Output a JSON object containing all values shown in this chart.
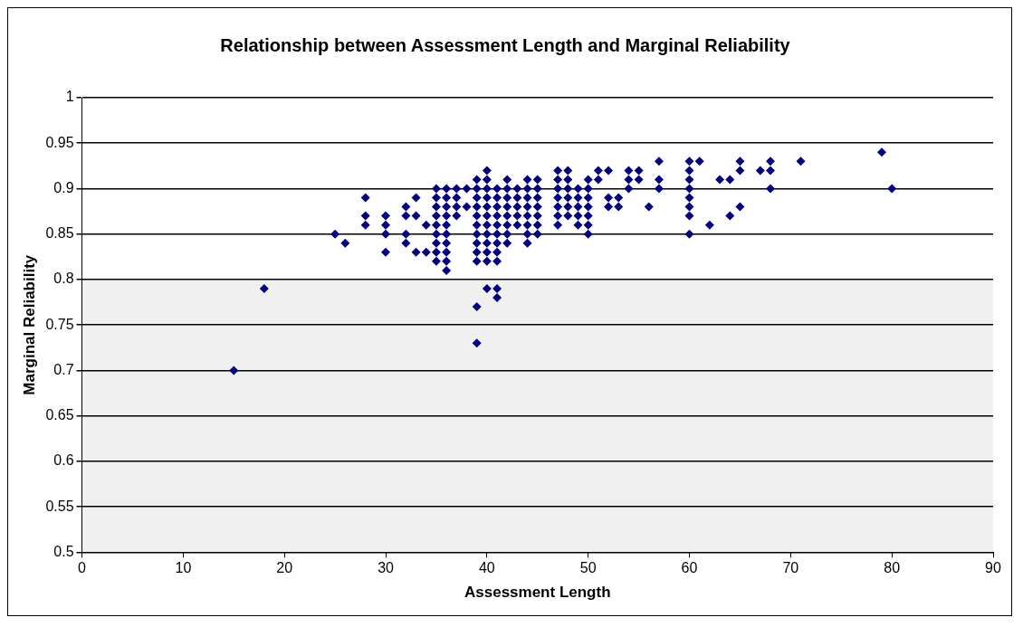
{
  "chart_data": {
    "type": "scatter",
    "title": "Relationship between Assessment Length and Marginal Reliability",
    "xlabel": "Assessment Length",
    "ylabel": "Marginal Reliability",
    "xlim": [
      0,
      90
    ],
    "xticks": [
      0,
      10,
      20,
      30,
      40,
      50,
      60,
      70,
      80,
      90
    ],
    "ylim": [
      0.5,
      1
    ],
    "yticks": [
      0.5,
      0.55,
      0.6,
      0.65,
      0.7,
      0.75,
      0.8,
      0.85,
      0.9,
      0.95,
      1
    ],
    "grid": "y",
    "legend": false,
    "marker": "diamond",
    "bands": [
      {
        "axis": "y",
        "from": 0.5,
        "to": 0.8,
        "color": "#f0f0f0"
      }
    ],
    "series": [
      {
        "color": "#000080",
        "x": [
          15,
          18,
          25,
          26,
          28,
          28,
          28,
          30,
          30,
          30,
          30,
          32,
          32,
          32,
          32,
          33,
          33,
          33,
          34,
          34,
          35,
          35,
          35,
          35,
          35,
          35,
          35,
          35,
          35,
          36,
          36,
          36,
          36,
          36,
          36,
          36,
          36,
          36,
          36,
          37,
          37,
          37,
          37,
          38,
          38,
          39,
          39,
          39,
          39,
          39,
          39,
          39,
          39,
          39,
          39,
          39,
          39,
          40,
          40,
          40,
          40,
          40,
          40,
          40,
          40,
          40,
          40,
          40,
          40,
          41,
          41,
          41,
          41,
          41,
          41,
          41,
          41,
          41,
          41,
          41,
          42,
          42,
          42,
          42,
          42,
          42,
          42,
          42,
          43,
          43,
          43,
          43,
          43,
          44,
          44,
          44,
          44,
          44,
          44,
          44,
          44,
          45,
          45,
          45,
          45,
          45,
          45,
          45,
          47,
          47,
          47,
          47,
          47,
          47,
          47,
          48,
          48,
          48,
          48,
          48,
          48,
          49,
          49,
          49,
          49,
          49,
          50,
          50,
          50,
          50,
          50,
          50,
          50,
          51,
          51,
          52,
          52,
          52,
          53,
          53,
          54,
          54,
          54,
          55,
          55,
          56,
          57,
          57,
          57,
          60,
          60,
          60,
          60,
          60,
          60,
          60,
          60,
          61,
          62,
          63,
          64,
          64,
          65,
          65,
          65,
          67,
          68,
          68,
          68,
          71,
          79,
          80
        ],
        "values": [
          0.7,
          0.79,
          0.85,
          0.84,
          0.89,
          0.87,
          0.86,
          0.87,
          0.86,
          0.85,
          0.83,
          0.88,
          0.87,
          0.85,
          0.84,
          0.89,
          0.87,
          0.83,
          0.86,
          0.83,
          0.9,
          0.89,
          0.88,
          0.87,
          0.86,
          0.85,
          0.84,
          0.83,
          0.82,
          0.9,
          0.89,
          0.88,
          0.87,
          0.86,
          0.85,
          0.84,
          0.83,
          0.82,
          0.81,
          0.9,
          0.89,
          0.88,
          0.87,
          0.9,
          0.88,
          0.91,
          0.9,
          0.89,
          0.88,
          0.87,
          0.86,
          0.85,
          0.84,
          0.83,
          0.82,
          0.77,
          0.73,
          0.92,
          0.91,
          0.9,
          0.89,
          0.88,
          0.87,
          0.86,
          0.85,
          0.84,
          0.83,
          0.82,
          0.79,
          0.9,
          0.89,
          0.88,
          0.87,
          0.86,
          0.85,
          0.84,
          0.83,
          0.82,
          0.79,
          0.78,
          0.91,
          0.9,
          0.89,
          0.88,
          0.87,
          0.86,
          0.85,
          0.84,
          0.9,
          0.89,
          0.88,
          0.87,
          0.86,
          0.91,
          0.9,
          0.89,
          0.88,
          0.87,
          0.86,
          0.85,
          0.84,
          0.91,
          0.9,
          0.89,
          0.88,
          0.87,
          0.86,
          0.85,
          0.92,
          0.91,
          0.9,
          0.89,
          0.88,
          0.87,
          0.86,
          0.92,
          0.91,
          0.9,
          0.89,
          0.88,
          0.87,
          0.9,
          0.89,
          0.88,
          0.87,
          0.86,
          0.91,
          0.9,
          0.89,
          0.88,
          0.87,
          0.86,
          0.85,
          0.92,
          0.91,
          0.92,
          0.89,
          0.88,
          0.89,
          0.88,
          0.92,
          0.91,
          0.9,
          0.92,
          0.91,
          0.88,
          0.93,
          0.91,
          0.9,
          0.93,
          0.92,
          0.91,
          0.9,
          0.89,
          0.88,
          0.87,
          0.85,
          0.93,
          0.86,
          0.91,
          0.91,
          0.87,
          0.93,
          0.92,
          0.88,
          0.92,
          0.93,
          0.92,
          0.9,
          0.93,
          0.94,
          0.9
        ]
      }
    ]
  }
}
